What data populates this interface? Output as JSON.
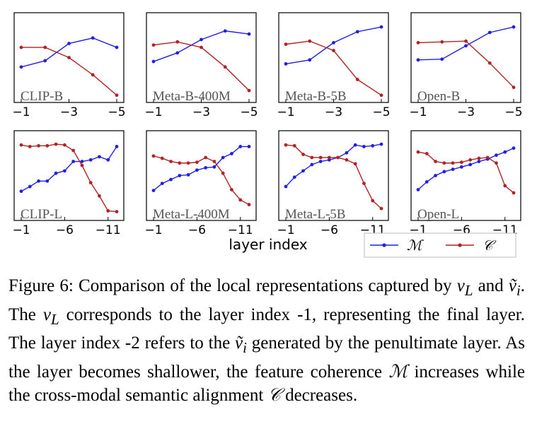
{
  "chart_data": {
    "type": "line",
    "xlabel": "layer index",
    "legend": {
      "placement": "bottom-right",
      "entries": [
        {
          "label": "ℳ",
          "color": "#1f1fe6"
        },
        {
          "label": "𝒞",
          "color": "#b22222"
        }
      ]
    },
    "panels": [
      {
        "label": "CLIP-B",
        "x": [
          -1,
          -2,
          -3,
          -4,
          -5
        ],
        "xticks": [
          "−1",
          "−3",
          "−5"
        ],
        "series": [
          {
            "name": "ℳ",
            "values": [
              0.38,
              0.46,
              0.68,
              0.75,
              0.63
            ]
          },
          {
            "name": "𝒞",
            "values": [
              0.63,
              0.63,
              0.5,
              0.28,
              0.02
            ]
          }
        ]
      },
      {
        "label": "Meta-B-400M",
        "x": [
          -1,
          -2,
          -3,
          -4,
          -5
        ],
        "xticks": [
          "−1",
          "−3",
          "−5"
        ],
        "series": [
          {
            "name": "ℳ",
            "values": [
              0.45,
              0.56,
              0.73,
              0.84,
              0.8
            ]
          },
          {
            "name": "𝒞",
            "values": [
              0.66,
              0.7,
              0.63,
              0.38,
              0.08
            ]
          }
        ]
      },
      {
        "label": "Meta-B-5B",
        "x": [
          -1,
          -2,
          -3,
          -4,
          -5
        ],
        "xticks": [
          "−1",
          "−3",
          "−5"
        ],
        "series": [
          {
            "name": "ℳ",
            "values": [
              0.42,
              0.47,
              0.69,
              0.83,
              0.89
            ]
          },
          {
            "name": "𝒞",
            "values": [
              0.67,
              0.71,
              0.59,
              0.22,
              0.02
            ]
          }
        ]
      },
      {
        "label": "Open-B",
        "x": [
          -1,
          -2,
          -3,
          -4,
          -5
        ],
        "xticks": [
          "−1",
          "−3",
          "−5"
        ],
        "series": [
          {
            "name": "ℳ",
            "values": [
              0.47,
              0.48,
              0.65,
              0.82,
              0.89
            ]
          },
          {
            "name": "𝒞",
            "values": [
              0.69,
              0.7,
              0.71,
              0.43,
              0.12
            ]
          }
        ]
      },
      {
        "label": "CLIP-L",
        "x": [
          -1,
          -2,
          -3,
          -4,
          -5,
          -6,
          -7,
          -8,
          -9,
          -10,
          -11,
          -12
        ],
        "xticks": [
          "−1",
          "−6",
          "−11"
        ],
        "series": [
          {
            "name": "ℳ",
            "values": [
              0.3,
              0.36,
              0.43,
              0.43,
              0.53,
              0.56,
              0.68,
              0.68,
              0.7,
              0.74,
              0.7,
              0.87
            ]
          },
          {
            "name": "𝒞",
            "values": [
              0.89,
              0.87,
              0.88,
              0.88,
              0.9,
              0.89,
              0.82,
              0.63,
              0.41,
              0.24,
              0.05,
              0.04
            ]
          }
        ]
      },
      {
        "label": "Meta-L-400M",
        "x": [
          -1,
          -2,
          -3,
          -4,
          -5,
          -6,
          -7,
          -8,
          -9,
          -10,
          -11,
          -12
        ],
        "xticks": [
          "−1",
          "−6",
          "−11"
        ],
        "series": [
          {
            "name": "ℳ",
            "values": [
              0.31,
              0.4,
              0.45,
              0.5,
              0.51,
              0.57,
              0.6,
              0.61,
              0.73,
              0.78,
              0.87,
              0.87
            ]
          },
          {
            "name": "𝒞",
            "values": [
              0.75,
              0.72,
              0.68,
              0.66,
              0.66,
              0.67,
              0.73,
              0.68,
              0.53,
              0.32,
              0.19,
              0.13
            ]
          }
        ]
      },
      {
        "label": "Meta-L-5B",
        "x": [
          -1,
          -2,
          -3,
          -4,
          -5,
          -6,
          -7,
          -8,
          -9,
          -10,
          -11,
          -12
        ],
        "xticks": [
          "−1",
          "−6",
          "−11"
        ],
        "series": [
          {
            "name": "ℳ",
            "values": [
              0.36,
              0.48,
              0.56,
              0.64,
              0.68,
              0.7,
              0.73,
              0.79,
              0.89,
              0.87,
              0.88,
              0.9
            ]
          },
          {
            "name": "𝒞",
            "values": [
              0.89,
              0.88,
              0.77,
              0.73,
              0.73,
              0.73,
              0.73,
              0.7,
              0.65,
              0.4,
              0.18,
              0.08
            ]
          }
        ]
      },
      {
        "label": "Open-L",
        "x": [
          -1,
          -2,
          -3,
          -4,
          -5,
          -6,
          -7,
          -8,
          -9,
          -10,
          -11,
          -12
        ],
        "xticks": [
          "−1",
          "−6",
          "−11"
        ],
        "series": [
          {
            "name": "ℳ",
            "values": [
              0.32,
              0.42,
              0.5,
              0.55,
              0.58,
              0.61,
              0.64,
              0.68,
              0.71,
              0.76,
              0.8,
              0.85
            ]
          },
          {
            "name": "𝒞",
            "values": [
              0.8,
              0.78,
              0.68,
              0.66,
              0.66,
              0.67,
              0.7,
              0.72,
              0.73,
              0.66,
              0.37,
              0.28
            ]
          }
        ]
      }
    ]
  },
  "caption": {
    "p1": "Figure 6: Comparison of the local representations captured by ",
    "vL": "v",
    "vL_sub": "L",
    "and": " and ",
    "vi": "ṽ",
    "vi_sub": "i",
    "p2": ". The ",
    "p3": " corresponds to the layer index -1, representing the final layer. The layer index -2 refers to the ",
    "p4": " generated by the penultimate layer. As the layer becomes shallower, the feature coherence ",
    "M": "ℳ",
    "p5": " increases while the cross-modal semantic alignment ",
    "C": "𝒞",
    "p6": " decreases."
  }
}
